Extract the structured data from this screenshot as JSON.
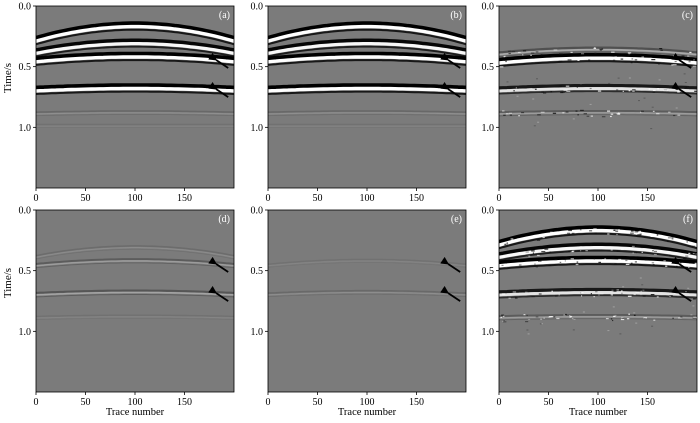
{
  "figure": {
    "y_axis_title": "Time/s",
    "x_axis_title": "Trace number",
    "y_ticks": [
      "0.0",
      "0.5",
      "1.0"
    ],
    "x_ticks": [
      "0",
      "50",
      "100",
      "150"
    ],
    "background_gray": "#7b7b7b"
  },
  "chart_data": [
    {
      "type": "heatmap",
      "panel": "(a)",
      "xlabel": "",
      "ylabel": "Time/s",
      "xlim": [
        0,
        200
      ],
      "ylim": [
        0,
        1.5
      ],
      "x_ticks": [
        0,
        50,
        100,
        150
      ],
      "y_ticks": [
        0.0,
        0.5,
        1.0
      ],
      "arrows": [
        {
          "x": 190,
          "t": 0.48
        },
        {
          "x": 190,
          "t": 0.72
        }
      ],
      "events": [
        {
          "t_apex": 0.17,
          "t_edge": 0.29,
          "amp": 1.0
        },
        {
          "t_apex": 0.31,
          "t_edge": 0.39,
          "amp": 0.95
        },
        {
          "t_apex": 0.42,
          "t_edge": 0.46,
          "amp": 1.0
        },
        {
          "t_apex": 0.68,
          "t_edge": 0.7,
          "amp": 1.0
        },
        {
          "t_apex": 0.88,
          "t_edge": 0.89,
          "amp": 0.15
        },
        {
          "t_apex": 0.99,
          "t_edge": 0.99,
          "amp": 0.08
        }
      ],
      "noise": 0
    },
    {
      "type": "heatmap",
      "panel": "(b)",
      "xlabel": "",
      "ylabel": "",
      "xlim": [
        0,
        200
      ],
      "ylim": [
        0,
        1.5
      ],
      "x_ticks": [
        0,
        50,
        100,
        150
      ],
      "y_ticks": [
        0.0,
        0.5,
        1.0
      ],
      "arrows": [
        {
          "x": 190,
          "t": 0.48
        },
        {
          "x": 190,
          "t": 0.72
        }
      ],
      "events": [
        {
          "t_apex": 0.17,
          "t_edge": 0.29,
          "amp": 1.0
        },
        {
          "t_apex": 0.31,
          "t_edge": 0.39,
          "amp": 0.95
        },
        {
          "t_apex": 0.42,
          "t_edge": 0.46,
          "amp": 1.0
        },
        {
          "t_apex": 0.68,
          "t_edge": 0.7,
          "amp": 1.0
        },
        {
          "t_apex": 0.88,
          "t_edge": 0.89,
          "amp": 0.15
        },
        {
          "t_apex": 0.99,
          "t_edge": 0.99,
          "amp": 0.08
        }
      ],
      "noise": 0
    },
    {
      "type": "heatmap",
      "panel": "(c)",
      "xlabel": "",
      "ylabel": "",
      "xlim": [
        0,
        200
      ],
      "ylim": [
        0,
        1.5
      ],
      "x_ticks": [
        0,
        50,
        100,
        150
      ],
      "y_ticks": [
        0.0,
        0.5,
        1.0
      ],
      "arrows": [
        {
          "x": 190,
          "t": 0.48
        },
        {
          "x": 190,
          "t": 0.72
        }
      ],
      "events": [
        {
          "t_apex": 0.36,
          "t_edge": 0.4,
          "amp": 0.35
        },
        {
          "t_apex": 0.43,
          "t_edge": 0.47,
          "amp": 1.0
        },
        {
          "t_apex": 0.68,
          "t_edge": 0.7,
          "amp": 0.8
        },
        {
          "t_apex": 0.88,
          "t_edge": 0.89,
          "amp": 0.25
        }
      ],
      "noise": 0.35
    },
    {
      "type": "heatmap",
      "panel": "(d)",
      "xlabel": "Trace number",
      "ylabel": "Time/s",
      "xlim": [
        0,
        200
      ],
      "ylim": [
        0,
        1.5
      ],
      "x_ticks": [
        0,
        50,
        100,
        150
      ],
      "y_ticks": [
        0.0,
        0.5,
        1.0
      ],
      "arrows": [
        {
          "x": 190,
          "t": 0.48
        },
        {
          "x": 190,
          "t": 0.72
        }
      ],
      "events": [
        {
          "t_apex": 0.31,
          "t_edge": 0.39,
          "amp": 0.12
        },
        {
          "t_apex": 0.42,
          "t_edge": 0.46,
          "amp": 0.25
        },
        {
          "t_apex": 0.68,
          "t_edge": 0.7,
          "amp": 0.3
        },
        {
          "t_apex": 0.88,
          "t_edge": 0.89,
          "amp": 0.08
        }
      ],
      "noise": 0
    },
    {
      "type": "heatmap",
      "panel": "(e)",
      "xlabel": "Trace number",
      "ylabel": "",
      "xlim": [
        0,
        200
      ],
      "ylim": [
        0,
        1.5
      ],
      "x_ticks": [
        0,
        50,
        100,
        150
      ],
      "y_ticks": [
        0.0,
        0.5,
        1.0
      ],
      "arrows": [
        {
          "x": 190,
          "t": 0.48
        },
        {
          "x": 190,
          "t": 0.72
        }
      ],
      "events": [
        {
          "t_apex": 0.42,
          "t_edge": 0.46,
          "amp": 0.08
        },
        {
          "t_apex": 0.68,
          "t_edge": 0.7,
          "amp": 0.14
        }
      ],
      "noise": 0
    },
    {
      "type": "heatmap",
      "panel": "(f)",
      "xlabel": "Trace number",
      "ylabel": "",
      "xlim": [
        0,
        200
      ],
      "ylim": [
        0,
        1.5
      ],
      "x_ticks": [
        0,
        50,
        100,
        150
      ],
      "y_ticks": [
        0.0,
        0.5,
        1.0
      ],
      "arrows": [
        {
          "x": 190,
          "t": 0.48
        },
        {
          "x": 190,
          "t": 0.72
        }
      ],
      "events": [
        {
          "t_apex": 0.17,
          "t_edge": 0.29,
          "amp": 1.0
        },
        {
          "t_apex": 0.31,
          "t_edge": 0.39,
          "amp": 0.95
        },
        {
          "t_apex": 0.42,
          "t_edge": 0.46,
          "amp": 1.0
        },
        {
          "t_apex": 0.68,
          "t_edge": 0.7,
          "amp": 0.8
        },
        {
          "t_apex": 0.88,
          "t_edge": 0.89,
          "amp": 0.25
        }
      ],
      "noise": 0.45
    }
  ]
}
